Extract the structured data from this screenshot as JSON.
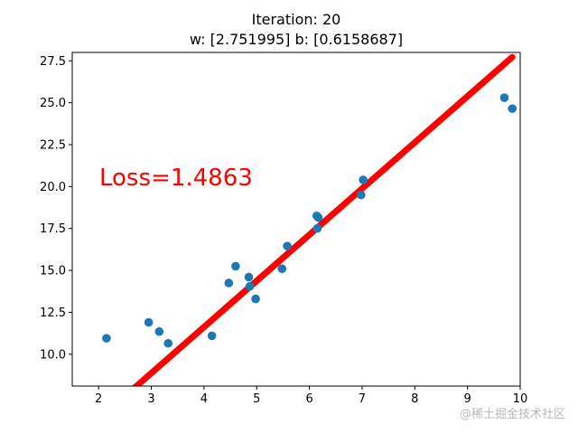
{
  "chart_data": {
    "type": "scatter",
    "title": "Iteration: 20",
    "subtitle": "w: [2.751995] b: [0.6158687]",
    "xlim": [
      1.5,
      10
    ],
    "ylim": [
      8.1,
      28.0
    ],
    "xticks": [
      2,
      3,
      4,
      5,
      6,
      7,
      8,
      9,
      10
    ],
    "yticks": [
      10.0,
      12.5,
      15.0,
      17.5,
      20.0,
      22.5,
      25.0,
      27.5
    ],
    "xtick_labels": [
      "2",
      "3",
      "4",
      "5",
      "6",
      "7",
      "8",
      "9",
      "10"
    ],
    "ytick_labels": [
      "10.0",
      "12.5",
      "15.0",
      "17.5",
      "20.0",
      "22.5",
      "25.0",
      "27.5"
    ],
    "grid": false,
    "points": [
      {
        "x": 2.15,
        "y": 10.95
      },
      {
        "x": 2.95,
        "y": 11.9
      },
      {
        "x": 3.15,
        "y": 11.35
      },
      {
        "x": 3.32,
        "y": 10.65
      },
      {
        "x": 4.15,
        "y": 11.1
      },
      {
        "x": 4.47,
        "y": 14.25
      },
      {
        "x": 4.6,
        "y": 15.25
      },
      {
        "x": 4.85,
        "y": 14.6
      },
      {
        "x": 4.87,
        "y": 14.05
      },
      {
        "x": 4.98,
        "y": 13.3
      },
      {
        "x": 5.48,
        "y": 15.1
      },
      {
        "x": 5.58,
        "y": 16.45
      },
      {
        "x": 6.14,
        "y": 18.25
      },
      {
        "x": 6.17,
        "y": 18.15
      },
      {
        "x": 6.15,
        "y": 17.5
      },
      {
        "x": 6.98,
        "y": 19.5
      },
      {
        "x": 7.02,
        "y": 20.4
      },
      {
        "x": 9.7,
        "y": 25.3
      },
      {
        "x": 9.85,
        "y": 24.65
      }
    ],
    "fit_line": {
      "w": 2.751995,
      "b": 0.6158687,
      "x_start": 2.15,
      "x_end": 9.85
    },
    "annotation": {
      "text": "Loss=1.4863"
    },
    "watermark": "@稀土掘金技术社区",
    "colors": {
      "points": "#1f77b4",
      "fit_line": "#ff0000",
      "annotation": "#ff0000"
    }
  }
}
